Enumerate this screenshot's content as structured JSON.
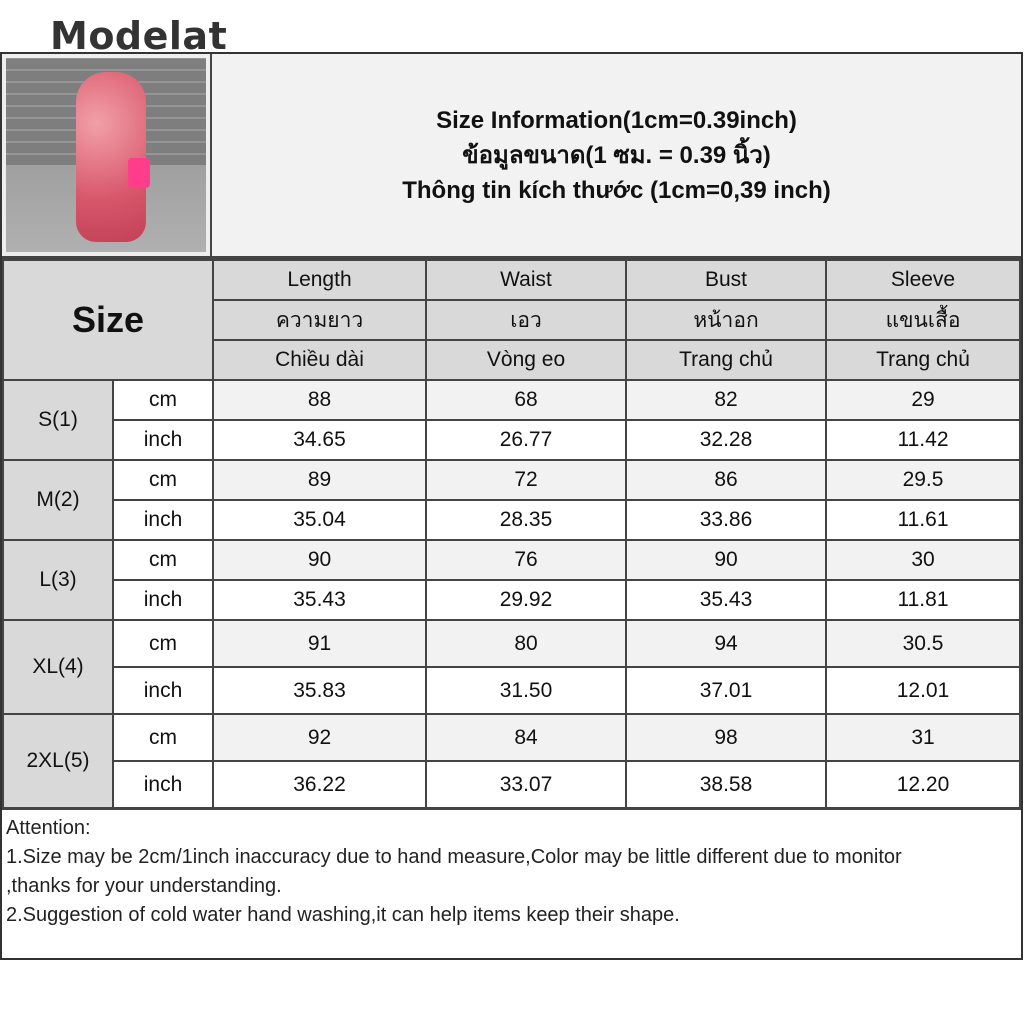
{
  "brand": "Modelat",
  "title": [
    "Size Information(1cm=0.39inch)",
    "ข้อมูลขนาด(1 ซม. = 0.39 นิ้ว)",
    "Thông tin kích thước (1cm=0,39 inch)"
  ],
  "size_header": "Size",
  "columns": [
    {
      "en": "Length",
      "th": "ความยาว",
      "vi": "Chiều dài"
    },
    {
      "en": "Waist",
      "th": "เอว",
      "vi": "Vòng eo"
    },
    {
      "en": "Bust",
      "th": "หน้าอก",
      "vi": "Trang chủ"
    },
    {
      "en": "Sleeve",
      "th": "แขนเสื้อ",
      "vi": "Trang chủ"
    }
  ],
  "units": {
    "cm": "cm",
    "inch": "inch"
  },
  "rows": [
    {
      "size": "S(1)",
      "cm": [
        "88",
        "68",
        "82",
        "29"
      ],
      "inch": [
        "34.65",
        "26.77",
        "32.28",
        "11.42"
      ]
    },
    {
      "size": "M(2)",
      "cm": [
        "89",
        "72",
        "86",
        "29.5"
      ],
      "inch": [
        "35.04",
        "28.35",
        "33.86",
        "11.61"
      ]
    },
    {
      "size": "L(3)",
      "cm": [
        "90",
        "76",
        "90",
        "30"
      ],
      "inch": [
        "35.43",
        "29.92",
        "35.43",
        "11.81"
      ]
    },
    {
      "size": "XL(4)",
      "cm": [
        "91",
        "80",
        "94",
        "30.5"
      ],
      "inch": [
        "35.83",
        "31.50",
        "37.01",
        "12.01"
      ]
    },
    {
      "size": "2XL(5)",
      "cm": [
        "92",
        "84",
        "98",
        "31"
      ],
      "inch": [
        "36.22",
        "33.07",
        "38.58",
        "12.20"
      ]
    }
  ],
  "attention": [
    "Attention:",
    "1.Size may be 2cm/1inch inaccuracy due to hand measure,Color may be little different due to monitor",
    ",thanks for your understanding.",
    "2.Suggestion of cold water hand washing,it can help items keep their shape."
  ]
}
